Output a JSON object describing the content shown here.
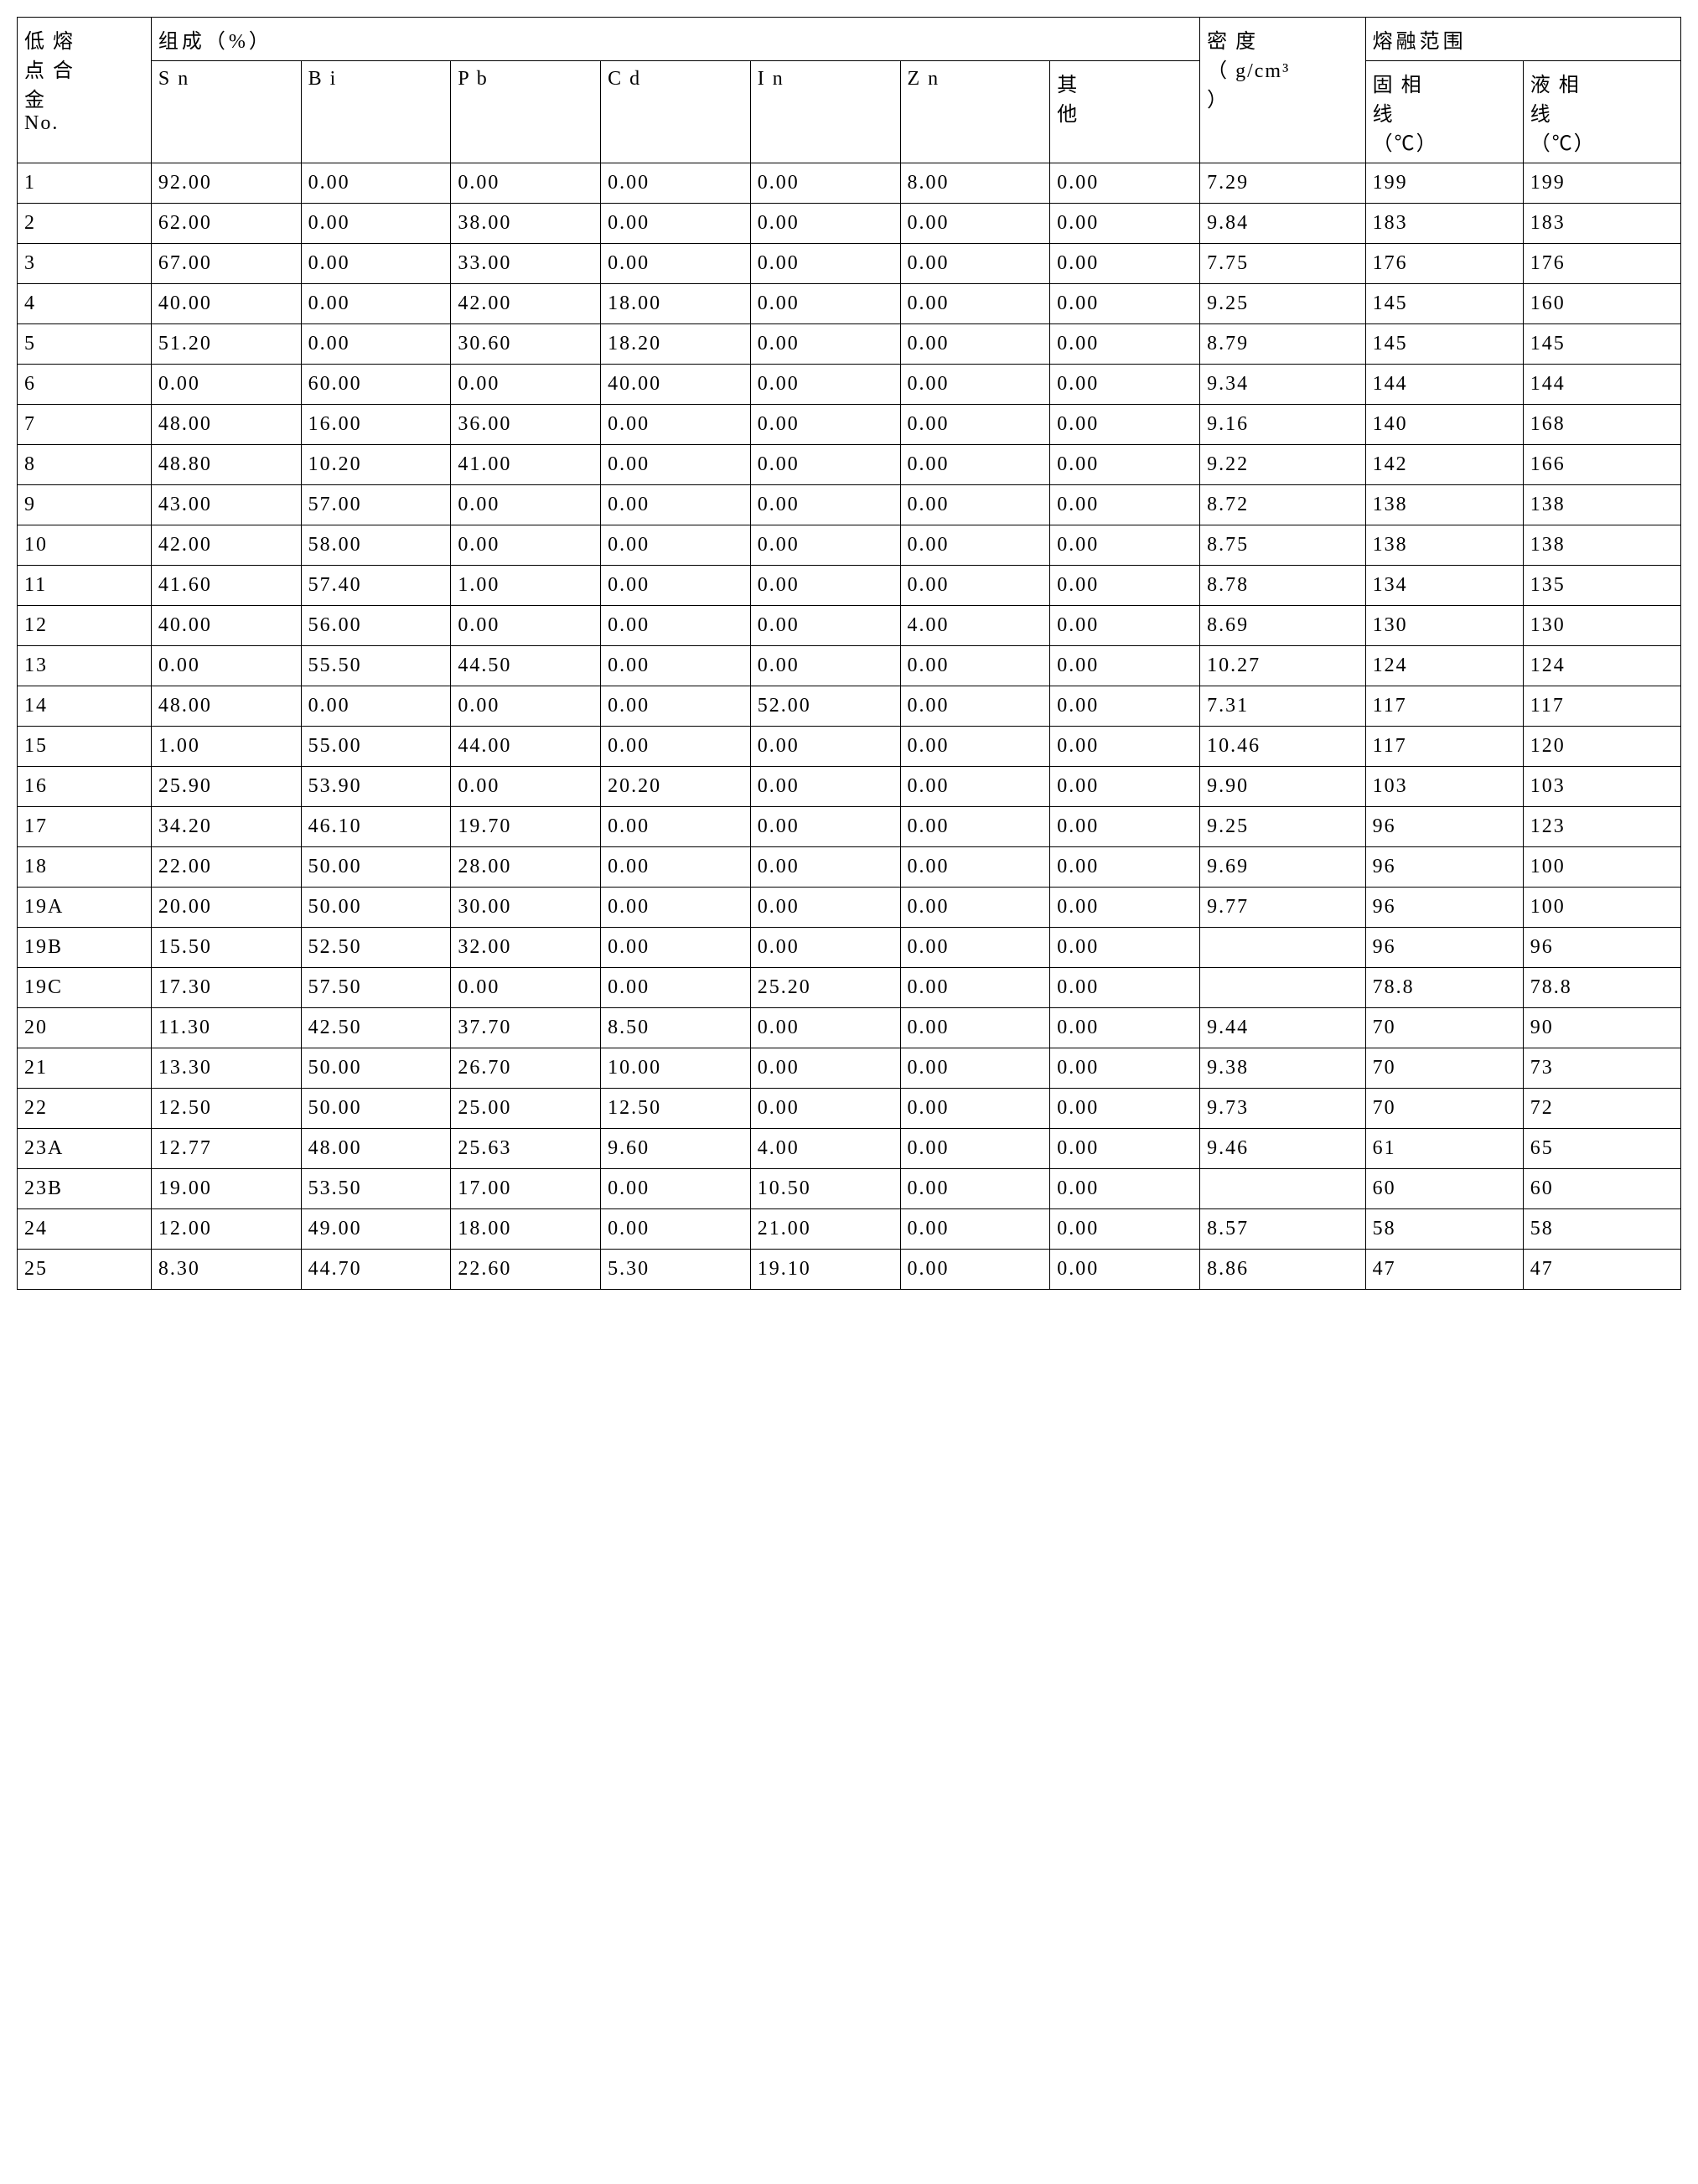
{
  "table": {
    "background_color": "#ffffff",
    "border_color": "#000000",
    "text_color": "#000000",
    "font_size": 24,
    "headers": {
      "row_label_l1": "低 熔",
      "row_label_l2": "点 合",
      "row_label_l3": "金",
      "row_label_l4": "No.",
      "composition_group": "组成（%）",
      "density_l1": "密   度",
      "density_l2": "（ g/cm³",
      "density_l3": "）",
      "melting_group": "熔融范围",
      "solidus_l1": "固 相",
      "solidus_l2": "线",
      "solidus_l3": "（℃）",
      "liquidus_l1": "液 相",
      "liquidus_l2": "线",
      "liquidus_l3": "（℃）",
      "sn": "S n",
      "bi": "B i",
      "pb": "P b",
      "cd": "C d",
      "in": "I n",
      "zn": "Z n",
      "other_l1": "其",
      "other_l2": "他"
    },
    "rows": [
      {
        "no": "1",
        "sn": "92.00",
        "bi": "0.00",
        "pb": "0.00",
        "cd": "0.00",
        "in": "0.00",
        "zn": "8.00",
        "other": "0.00",
        "density": "7.29",
        "solidus": "199",
        "liquidus": "199"
      },
      {
        "no": "2",
        "sn": "62.00",
        "bi": "0.00",
        "pb": "38.00",
        "cd": "0.00",
        "in": "0.00",
        "zn": "0.00",
        "other": "0.00",
        "density": "9.84",
        "solidus": "183",
        "liquidus": "183"
      },
      {
        "no": "3",
        "sn": "67.00",
        "bi": "0.00",
        "pb": "33.00",
        "cd": "0.00",
        "in": "0.00",
        "zn": "0.00",
        "other": "0.00",
        "density": "7.75",
        "solidus": "176",
        "liquidus": "176"
      },
      {
        "no": "4",
        "sn": "40.00",
        "bi": "0.00",
        "pb": "42.00",
        "cd": "18.00",
        "in": "0.00",
        "zn": "0.00",
        "other": "0.00",
        "density": "9.25",
        "solidus": "145",
        "liquidus": "160"
      },
      {
        "no": "5",
        "sn": "51.20",
        "bi": "0.00",
        "pb": "30.60",
        "cd": "18.20",
        "in": "0.00",
        "zn": "0.00",
        "other": "0.00",
        "density": "8.79",
        "solidus": "145",
        "liquidus": "145"
      },
      {
        "no": "6",
        "sn": "0.00",
        "bi": "60.00",
        "pb": "0.00",
        "cd": "40.00",
        "in": "0.00",
        "zn": "0.00",
        "other": "0.00",
        "density": "9.34",
        "solidus": "144",
        "liquidus": "144"
      },
      {
        "no": "7",
        "sn": "48.00",
        "bi": "16.00",
        "pb": "36.00",
        "cd": "0.00",
        "in": "0.00",
        "zn": "0.00",
        "other": "0.00",
        "density": "9.16",
        "solidus": "140",
        "liquidus": "168"
      },
      {
        "no": "8",
        "sn": "48.80",
        "bi": "10.20",
        "pb": "41.00",
        "cd": "0.00",
        "in": "0.00",
        "zn": "0.00",
        "other": "0.00",
        "density": "9.22",
        "solidus": "142",
        "liquidus": "166"
      },
      {
        "no": "9",
        "sn": "43.00",
        "bi": "57.00",
        "pb": "0.00",
        "cd": "0.00",
        "in": "0.00",
        "zn": "0.00",
        "other": "0.00",
        "density": "8.72",
        "solidus": "138",
        "liquidus": "138"
      },
      {
        "no": "10",
        "sn": "42.00",
        "bi": "58.00",
        "pb": "0.00",
        "cd": "0.00",
        "in": "0.00",
        "zn": "0.00",
        "other": "0.00",
        "density": "8.75",
        "solidus": "138",
        "liquidus": "138"
      },
      {
        "no": "11",
        "sn": "41.60",
        "bi": "57.40",
        "pb": "1.00",
        "cd": "0.00",
        "in": "0.00",
        "zn": "0.00",
        "other": "0.00",
        "density": "8.78",
        "solidus": "134",
        "liquidus": "135"
      },
      {
        "no": "12",
        "sn": "40.00",
        "bi": "56.00",
        "pb": "0.00",
        "cd": "0.00",
        "in": "0.00",
        "zn": "4.00",
        "other": "0.00",
        "density": "8.69",
        "solidus": "130",
        "liquidus": "130"
      },
      {
        "no": "13",
        "sn": "0.00",
        "bi": "55.50",
        "pb": "44.50",
        "cd": "0.00",
        "in": "0.00",
        "zn": "0.00",
        "other": "0.00",
        "density": "10.27",
        "solidus": "124",
        "liquidus": "124"
      },
      {
        "no": "14",
        "sn": "48.00",
        "bi": "0.00",
        "pb": "0.00",
        "cd": "0.00",
        "in": "52.00",
        "zn": "0.00",
        "other": "0.00",
        "density": "7.31",
        "solidus": "117",
        "liquidus": "117"
      },
      {
        "no": "15",
        "sn": "1.00",
        "bi": "55.00",
        "pb": "44.00",
        "cd": "0.00",
        "in": "0.00",
        "zn": "0.00",
        "other": "0.00",
        "density": "10.46",
        "solidus": "117",
        "liquidus": "120"
      },
      {
        "no": "16",
        "sn": "25.90",
        "bi": "53.90",
        "pb": "0.00",
        "cd": "20.20",
        "in": "0.00",
        "zn": "0.00",
        "other": "0.00",
        "density": "9.90",
        "solidus": "103",
        "liquidus": "103"
      },
      {
        "no": "17",
        "sn": "34.20",
        "bi": "46.10",
        "pb": "19.70",
        "cd": "0.00",
        "in": "0.00",
        "zn": "0.00",
        "other": "0.00",
        "density": "9.25",
        "solidus": "96",
        "liquidus": "123"
      },
      {
        "no": "18",
        "sn": "22.00",
        "bi": "50.00",
        "pb": "28.00",
        "cd": "0.00",
        "in": "0.00",
        "zn": "0.00",
        "other": "0.00",
        "density": "9.69",
        "solidus": "96",
        "liquidus": "100"
      },
      {
        "no": "19A",
        "sn": "20.00",
        "bi": "50.00",
        "pb": "30.00",
        "cd": "0.00",
        "in": "0.00",
        "zn": "0.00",
        "other": "0.00",
        "density": "9.77",
        "solidus": "96",
        "liquidus": "100"
      },
      {
        "no": "19B",
        "sn": "15.50",
        "bi": "52.50",
        "pb": "32.00",
        "cd": "0.00",
        "in": "0.00",
        "zn": "0.00",
        "other": "0.00",
        "density": "",
        "solidus": "96",
        "liquidus": "96"
      },
      {
        "no": "19C",
        "sn": "17.30",
        "bi": "57.50",
        "pb": "0.00",
        "cd": "0.00",
        "in": "25.20",
        "zn": "0.00",
        "other": "0.00",
        "density": "",
        "solidus": "78.8",
        "liquidus": "78.8"
      },
      {
        "no": "20",
        "sn": "11.30",
        "bi": "42.50",
        "pb": "37.70",
        "cd": "8.50",
        "in": "0.00",
        "zn": "0.00",
        "other": "0.00",
        "density": "9.44",
        "solidus": "70",
        "liquidus": "90"
      },
      {
        "no": "21",
        "sn": "13.30",
        "bi": "50.00",
        "pb": "26.70",
        "cd": "10.00",
        "in": "0.00",
        "zn": "0.00",
        "other": "0.00",
        "density": "9.38",
        "solidus": "70",
        "liquidus": "73"
      },
      {
        "no": "22",
        "sn": "12.50",
        "bi": "50.00",
        "pb": "25.00",
        "cd": "12.50",
        "in": "0.00",
        "zn": "0.00",
        "other": "0.00",
        "density": "9.73",
        "solidus": "70",
        "liquidus": "72"
      },
      {
        "no": "23A",
        "sn": "12.77",
        "bi": "48.00",
        "pb": "25.63",
        "cd": "9.60",
        "in": "4.00",
        "zn": "0.00",
        "other": "0.00",
        "density": "9.46",
        "solidus": "61",
        "liquidus": "65"
      },
      {
        "no": "23B",
        "sn": "19.00",
        "bi": "53.50",
        "pb": "17.00",
        "cd": "0.00",
        "in": "10.50",
        "zn": "0.00",
        "other": "0.00",
        "density": "",
        "solidus": "60",
        "liquidus": "60"
      },
      {
        "no": "24",
        "sn": "12.00",
        "bi": "49.00",
        "pb": "18.00",
        "cd": "0.00",
        "in": "21.00",
        "zn": "0.00",
        "other": "0.00",
        "density": "8.57",
        "solidus": "58",
        "liquidus": "58"
      },
      {
        "no": "25",
        "sn": "8.30",
        "bi": "44.70",
        "pb": "22.60",
        "cd": "5.30",
        "in": "19.10",
        "zn": "0.00",
        "other": "0.00",
        "density": "8.86",
        "solidus": "47",
        "liquidus": "47"
      }
    ]
  }
}
